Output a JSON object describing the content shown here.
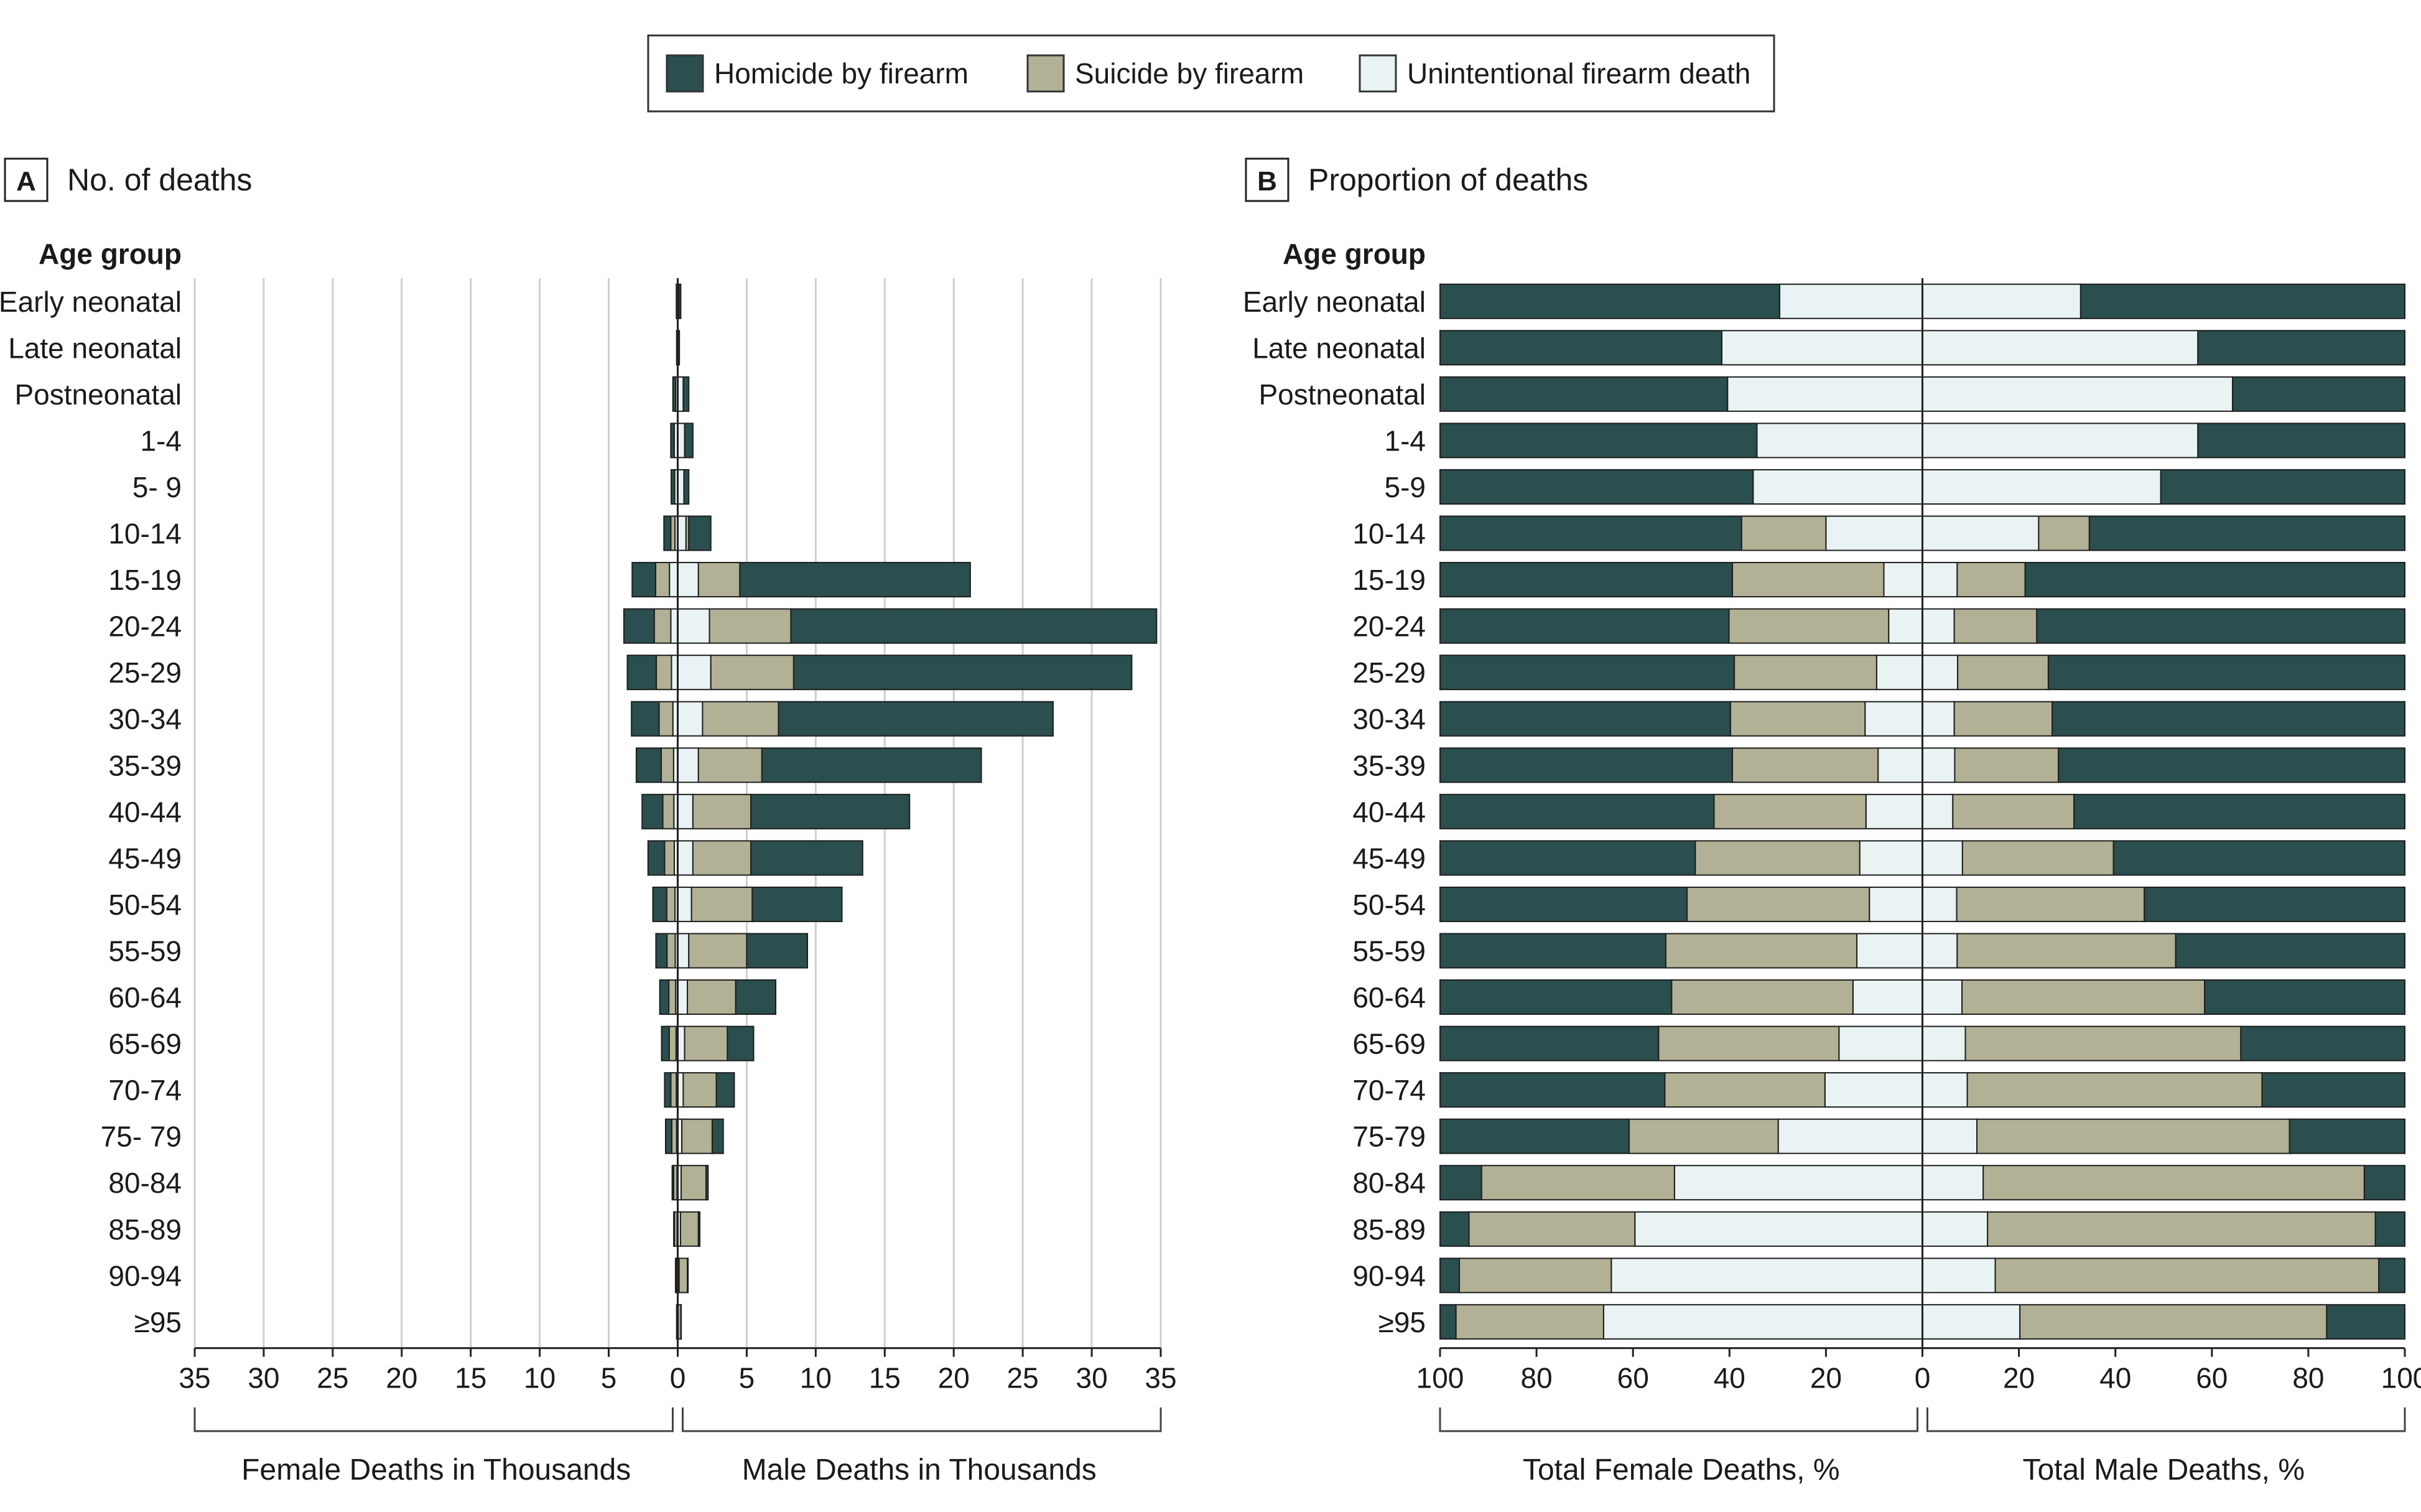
{
  "legend": [
    {
      "key": "homicide",
      "label": "Homicide by firearm",
      "color": "#2b4e4e"
    },
    {
      "key": "suicide",
      "label": "Suicide by firearm",
      "color": "#b2b196"
    },
    {
      "key": "unintentional",
      "label": "Unintentional firearm death",
      "color": "#e9f3f3"
    }
  ],
  "chart_data": [
    {
      "type": "bar",
      "panel": "A",
      "title": "No. of deaths",
      "category_header": "Age group",
      "xlabel_left": "Female Deaths in Thousands",
      "xlabel_right": "Male Deaths in Thousands",
      "xlim": [
        -35,
        35
      ],
      "ticks": [
        35,
        30,
        25,
        20,
        15,
        10,
        5,
        0,
        5,
        10,
        15,
        20,
        25,
        30,
        35
      ],
      "categories": [
        "Early neonatal",
        "Late neonatal",
        "Postneonatal",
        "1-4",
        "5- 9",
        "10-14",
        "15-19",
        "20-24",
        "25-29",
        "30-34",
        "35-39",
        "40-44",
        "45-49",
        "50-54",
        "55-59",
        "60-64",
        "65-69",
        "70-74",
        "75- 79",
        "80-84",
        "85-89",
        "90-94",
        "≥95"
      ],
      "series": [
        {
          "name": "Female unintentional",
          "values": [
            0.04,
            0.03,
            0.15,
            0.25,
            0.22,
            0.2,
            0.6,
            0.5,
            0.45,
            0.35,
            0.3,
            0.28,
            0.25,
            0.2,
            0.18,
            0.15,
            0.12,
            0.1,
            0.08,
            0.05,
            0.04,
            0.02,
            0.01
          ]
        },
        {
          "name": "Female suicide",
          "values": [
            0,
            0,
            0,
            0,
            0,
            0.3,
            1.0,
            1.2,
            1.1,
            1.0,
            0.9,
            0.8,
            0.7,
            0.6,
            0.6,
            0.5,
            0.5,
            0.4,
            0.35,
            0.25,
            0.2,
            0.1,
            0.05
          ]
        },
        {
          "name": "Female homicide",
          "values": [
            0.06,
            0.05,
            0.2,
            0.25,
            0.25,
            0.5,
            1.7,
            2.2,
            2.1,
            2.0,
            1.8,
            1.5,
            1.2,
            1.0,
            0.8,
            0.65,
            0.55,
            0.45,
            0.45,
            0.1,
            0.05,
            0.04,
            0.02
          ]
        },
        {
          "name": "Male unintentional",
          "values": [
            0.08,
            0.07,
            0.4,
            0.5,
            0.45,
            0.6,
            1.5,
            2.3,
            2.4,
            1.8,
            1.5,
            1.1,
            1.1,
            1.0,
            0.8,
            0.7,
            0.5,
            0.4,
            0.3,
            0.25,
            0.2,
            0.1,
            0.03
          ]
        },
        {
          "name": "Male suicide",
          "values": [
            0,
            0,
            0,
            0,
            0,
            0.2,
            3.0,
            5.9,
            6.0,
            5.5,
            4.6,
            4.2,
            4.2,
            4.4,
            4.2,
            3.5,
            3.1,
            2.4,
            2.2,
            1.8,
            1.3,
            0.6,
            0.2
          ]
        },
        {
          "name": "Male homicide",
          "values": [
            0.14,
            0.05,
            0.4,
            0.6,
            0.35,
            1.6,
            16.7,
            26.5,
            24.5,
            19.9,
            15.9,
            11.5,
            8.1,
            6.5,
            4.4,
            2.9,
            1.9,
            1.3,
            0.8,
            0.15,
            0.1,
            0.05,
            0.02
          ]
        }
      ]
    },
    {
      "type": "bar",
      "panel": "B",
      "title": "Proportion of deaths",
      "category_header": "Age group",
      "xlabel_left": "Total Female Deaths, %",
      "xlabel_right": "Total Male Deaths, %",
      "xlim": [
        -100,
        100
      ],
      "ticks": [
        100,
        80,
        60,
        40,
        20,
        0,
        20,
        40,
        60,
        80,
        100
      ],
      "categories": [
        "Early neonatal",
        "Late neonatal",
        "Postneonatal",
        "1-4",
        "5-9",
        "10-14",
        "15-19",
        "20-24",
        "25-29",
        "30-34",
        "35-39",
        "40-44",
        "45-49",
        "50-54",
        "55-59",
        "60-64",
        "65-69",
        "70-74",
        "75-79",
        "80-84",
        "85-89",
        "90-94",
        "≥95"
      ],
      "series": [
        {
          "name": "Female unintentional",
          "values": [
            29.6,
            41.6,
            40.4,
            34.3,
            35.1,
            20,
            8,
            7,
            9.5,
            11.9,
            9.2,
            11.7,
            13,
            11,
            13.6,
            14.4,
            17.3,
            20.2,
            29.9,
            51.4,
            59.6,
            64.5,
            66.1
          ]
        },
        {
          "name": "Female suicide",
          "values": [
            0,
            0,
            0,
            0,
            0,
            17.5,
            31.4,
            33.1,
            29.5,
            27.9,
            30.2,
            31.5,
            34.1,
            37.8,
            39.6,
            37.6,
            37.4,
            33.2,
            30.9,
            40,
            34.4,
            31.5,
            30.6
          ]
        },
        {
          "name": "Female homicide",
          "values": [
            70.4,
            58.4,
            59.6,
            65.7,
            64.9,
            62.5,
            60.6,
            59.9,
            61,
            60.2,
            60.6,
            56.8,
            52.9,
            51.2,
            46.8,
            48,
            45.3,
            46.6,
            39.2,
            8.6,
            6,
            4,
            3.3
          ]
        },
        {
          "name": "Male unintentional",
          "values": [
            32.8,
            57.1,
            64.3,
            57.1,
            49.4,
            24.1,
            7.2,
            6.6,
            7.3,
            6.6,
            6.7,
            6.3,
            8.3,
            7.1,
            7.2,
            8.2,
            8.9,
            9.3,
            11.3,
            12.6,
            13.5,
            15.1,
            20.2
          ]
        },
        {
          "name": "Male suicide",
          "values": [
            0,
            0,
            0,
            0,
            0,
            10.5,
            14.1,
            17.1,
            18.8,
            20.3,
            21.5,
            25.1,
            31.3,
            38.9,
            45.3,
            50.3,
            57.1,
            61.1,
            64.8,
            79,
            80.4,
            79.5,
            63.6
          ]
        },
        {
          "name": "Male homicide",
          "values": [
            67.2,
            42.9,
            35.7,
            42.9,
            50.6,
            65.4,
            78.7,
            76.3,
            73.9,
            73.1,
            71.8,
            68.6,
            60.4,
            54,
            47.5,
            41.5,
            34,
            29.6,
            23.9,
            8.4,
            6.1,
            5.4,
            16.2
          ]
        }
      ]
    }
  ]
}
